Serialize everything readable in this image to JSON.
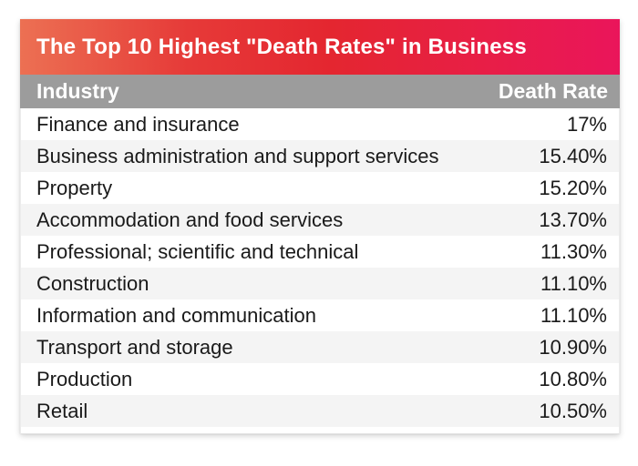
{
  "title": "The Top 10 Highest \"Death Rates\" in Business",
  "columns": {
    "industry": "Industry",
    "rate": "Death Rate"
  },
  "rows": [
    {
      "industry": "Finance and insurance",
      "rate": "17%"
    },
    {
      "industry": "Business administration and support services",
      "rate": "15.40%"
    },
    {
      "industry": "Property",
      "rate": "15.20%"
    },
    {
      "industry": "Accommodation and food services",
      "rate": "13.70%"
    },
    {
      "industry": "Professional; scientific and technical",
      "rate": "11.30%"
    },
    {
      "industry": "Construction",
      "rate": "11.10%"
    },
    {
      "industry": "Information and communication",
      "rate": "11.10%"
    },
    {
      "industry": "Transport and storage",
      "rate": "10.90%"
    },
    {
      "industry": "Production",
      "rate": "10.80%"
    },
    {
      "industry": "Retail",
      "rate": "10.50%"
    }
  ],
  "colors": {
    "title_gradient_left": "#EC7053",
    "title_gradient_mid": "#E42630",
    "title_gradient_right": "#EA155B",
    "header_bg": "#9C9C9C",
    "stripe_bg": "#F4F4F4",
    "row_text": "#1A1A1A",
    "header_text": "#FFFFFF"
  },
  "chart_data": {
    "type": "table",
    "title": "The Top 10 Highest \"Death Rates\" in Business",
    "columns": [
      "Industry",
      "Death Rate"
    ],
    "rows": [
      [
        "Finance and insurance",
        "17%"
      ],
      [
        "Business administration and support services",
        "15.40%"
      ],
      [
        "Property",
        "15.20%"
      ],
      [
        "Accommodation and food services",
        "13.70%"
      ],
      [
        "Professional; scientific and technical",
        "11.30%"
      ],
      [
        "Construction",
        "11.10%"
      ],
      [
        "Information and communication",
        "11.10%"
      ],
      [
        "Transport and storage",
        "10.90%"
      ],
      [
        "Production",
        "10.80%"
      ],
      [
        "Retail",
        "10.50%"
      ]
    ],
    "values_numeric_percent": [
      17,
      15.4,
      15.2,
      13.7,
      11.3,
      11.1,
      11.1,
      10.9,
      10.8,
      10.5
    ],
    "layout": {
      "striped": true,
      "value_alignment": "right"
    }
  }
}
